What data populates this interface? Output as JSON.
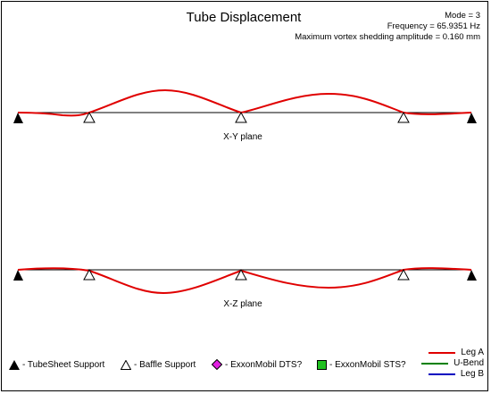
{
  "title": "Tube Displacement",
  "info": {
    "mode": "Mode = 3",
    "frequency": "Frequency = 65.9351 Hz",
    "amplitude": "Maximum vortex shedding amplitude = 0.160 mm"
  },
  "planes": [
    {
      "label": "X-Y plane",
      "supports": [
        {
          "type": "tubesheet"
        },
        {
          "type": "baffle"
        },
        {
          "type": "baffle"
        },
        {
          "type": "baffle"
        },
        {
          "type": "tubesheet"
        }
      ],
      "direction": "up"
    },
    {
      "label": "X-Z plane",
      "supports": [
        {
          "type": "tubesheet"
        },
        {
          "type": "baffle"
        },
        {
          "type": "baffle"
        },
        {
          "type": "baffle"
        },
        {
          "type": "tubesheet"
        }
      ],
      "direction": "down"
    }
  ],
  "legend": {
    "tubesheet": "- TubeSheet Support",
    "baffle": "- Baffle Support",
    "dts": "- ExxonMobil DTS?",
    "sts": "- ExxonMobil STS?"
  },
  "line_legend": [
    {
      "label": "Leg A",
      "color": "#e00000"
    },
    {
      "label": "U-Bend",
      "color": "#008000"
    },
    {
      "label": "Leg B",
      "color": "#0000c0"
    }
  ],
  "colors": {
    "curve": "#e00000",
    "dts": "#e020e0",
    "sts": "#20c020"
  }
}
